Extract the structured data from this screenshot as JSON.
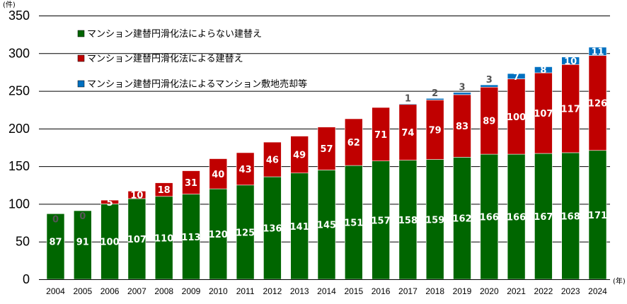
{
  "chart_data": {
    "type": "bar",
    "stacked": true,
    "y_unit": "(件)",
    "x_unit": "(年)",
    "ylim": [
      0,
      350
    ],
    "y_ticks": [
      0,
      50,
      100,
      150,
      200,
      250,
      300,
      350
    ],
    "grid": "horizontal",
    "legend_position": "top-left",
    "categories": [
      "2004",
      "2005",
      "2006",
      "2007",
      "2008",
      "2009",
      "2010",
      "2011",
      "2012",
      "2013",
      "2014",
      "2015",
      "2016",
      "2017",
      "2018",
      "2019",
      "2020",
      "2021",
      "2022",
      "2023",
      "2024"
    ],
    "series": [
      {
        "name": "マンション建替円滑化法によらない建替え",
        "color": "#006600",
        "values": [
          87,
          91,
          100,
          107,
          110,
          113,
          120,
          125,
          136,
          141,
          145,
          151,
          157,
          158,
          159,
          162,
          166,
          166,
          167,
          168,
          171
        ]
      },
      {
        "name": "マンション建替円滑化法による建替え",
        "color": "#C00000",
        "values": [
          0,
          0,
          5,
          10,
          18,
          31,
          40,
          43,
          46,
          49,
          57,
          62,
          71,
          74,
          79,
          83,
          89,
          100,
          107,
          117,
          126
        ]
      },
      {
        "name": "マンション建替円滑化法によるマンション敷地売却等",
        "color": "#0070C0",
        "values": [
          null,
          null,
          null,
          null,
          null,
          null,
          null,
          null,
          null,
          null,
          null,
          null,
          null,
          1,
          2,
          3,
          3,
          7,
          8,
          10,
          11
        ]
      }
    ]
  }
}
